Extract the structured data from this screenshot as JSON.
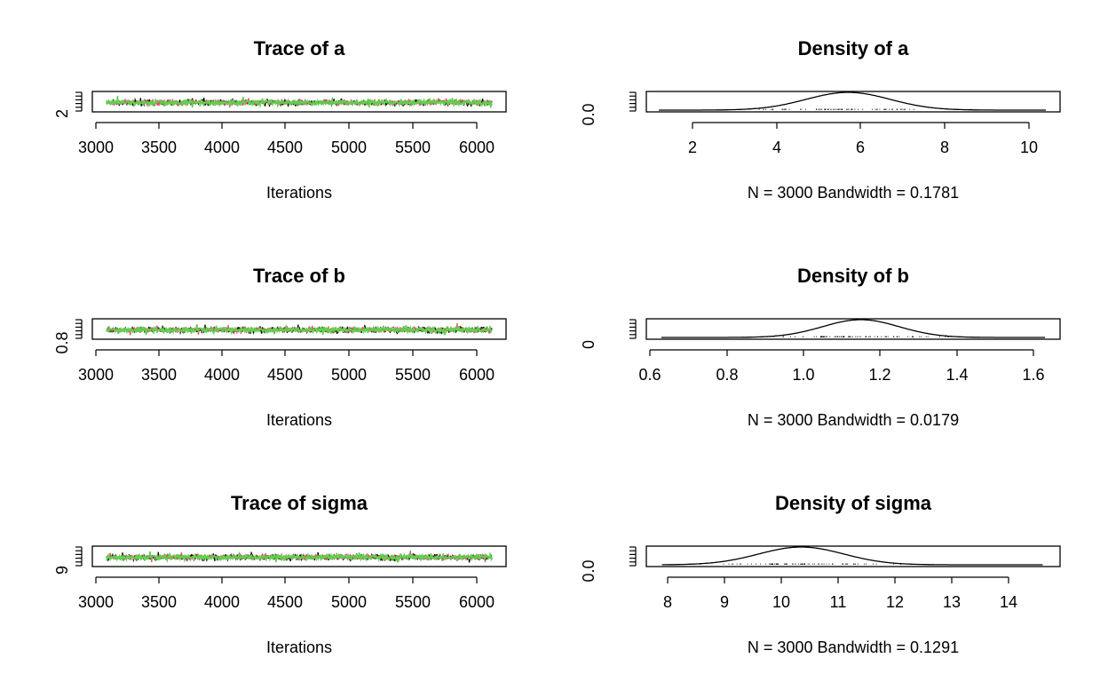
{
  "colors": {
    "chain1": "#000000",
    "chain2": "#DF536B",
    "chain3": "#61D04F",
    "box": "#000000"
  },
  "chart_data": [
    {
      "type": "line",
      "id": "trace-a",
      "title": "Trace of a",
      "xlabel": "Iterations",
      "x_ticks": [
        "3000",
        "3500",
        "4000",
        "4500",
        "5000",
        "5500",
        "6000"
      ],
      "y_ticks": [
        "2"
      ],
      "xlim": [
        3001,
        6000
      ],
      "series_count": 3,
      "y_center": 5.7
    },
    {
      "type": "area",
      "id": "density-a",
      "title": "Density of a",
      "xlabel": "N = 3000   Bandwidth = 0.1781",
      "x_ticks": [
        "2",
        "4",
        "6",
        "8",
        "10"
      ],
      "y_ticks": [
        "0.0"
      ],
      "xlim": [
        1.2,
        10.4
      ],
      "peak": {
        "mean": 5.7,
        "sd": 1.0
      }
    },
    {
      "type": "line",
      "id": "trace-b",
      "title": "Trace of b",
      "xlabel": "Iterations",
      "x_ticks": [
        "3000",
        "3500",
        "4000",
        "4500",
        "5000",
        "5500",
        "6000"
      ],
      "y_ticks": [
        "0.8"
      ],
      "xlim": [
        3001,
        6000
      ],
      "series_count": 3,
      "y_center": 1.15
    },
    {
      "type": "area",
      "id": "density-b",
      "title": "Density of b",
      "xlabel": "N = 3000   Bandwidth = 0.0179",
      "x_ticks": [
        "0.6",
        "0.8",
        "1.0",
        "1.2",
        "1.4",
        "1.6"
      ],
      "y_ticks": [
        "0"
      ],
      "xlim": [
        0.63,
        1.63
      ],
      "peak": {
        "mean": 1.15,
        "sd": 0.1
      }
    },
    {
      "type": "line",
      "id": "trace-sigma",
      "title": "Trace of sigma",
      "xlabel": "Iterations",
      "x_ticks": [
        "3000",
        "3500",
        "4000",
        "4500",
        "5000",
        "5500",
        "6000"
      ],
      "y_ticks": [
        "9"
      ],
      "xlim": [
        3001,
        6000
      ],
      "series_count": 3,
      "y_center": 10.4
    },
    {
      "type": "area",
      "id": "density-sigma",
      "title": "Density of sigma",
      "xlabel": "N = 3000   Bandwidth = 0.1291",
      "x_ticks": [
        "8",
        "9",
        "10",
        "11",
        "12",
        "13",
        "14"
      ],
      "y_ticks": [
        "0.0"
      ],
      "xlim": [
        7.9,
        14.6
      ],
      "peak": {
        "mean": 10.35,
        "sd": 0.75
      }
    }
  ]
}
